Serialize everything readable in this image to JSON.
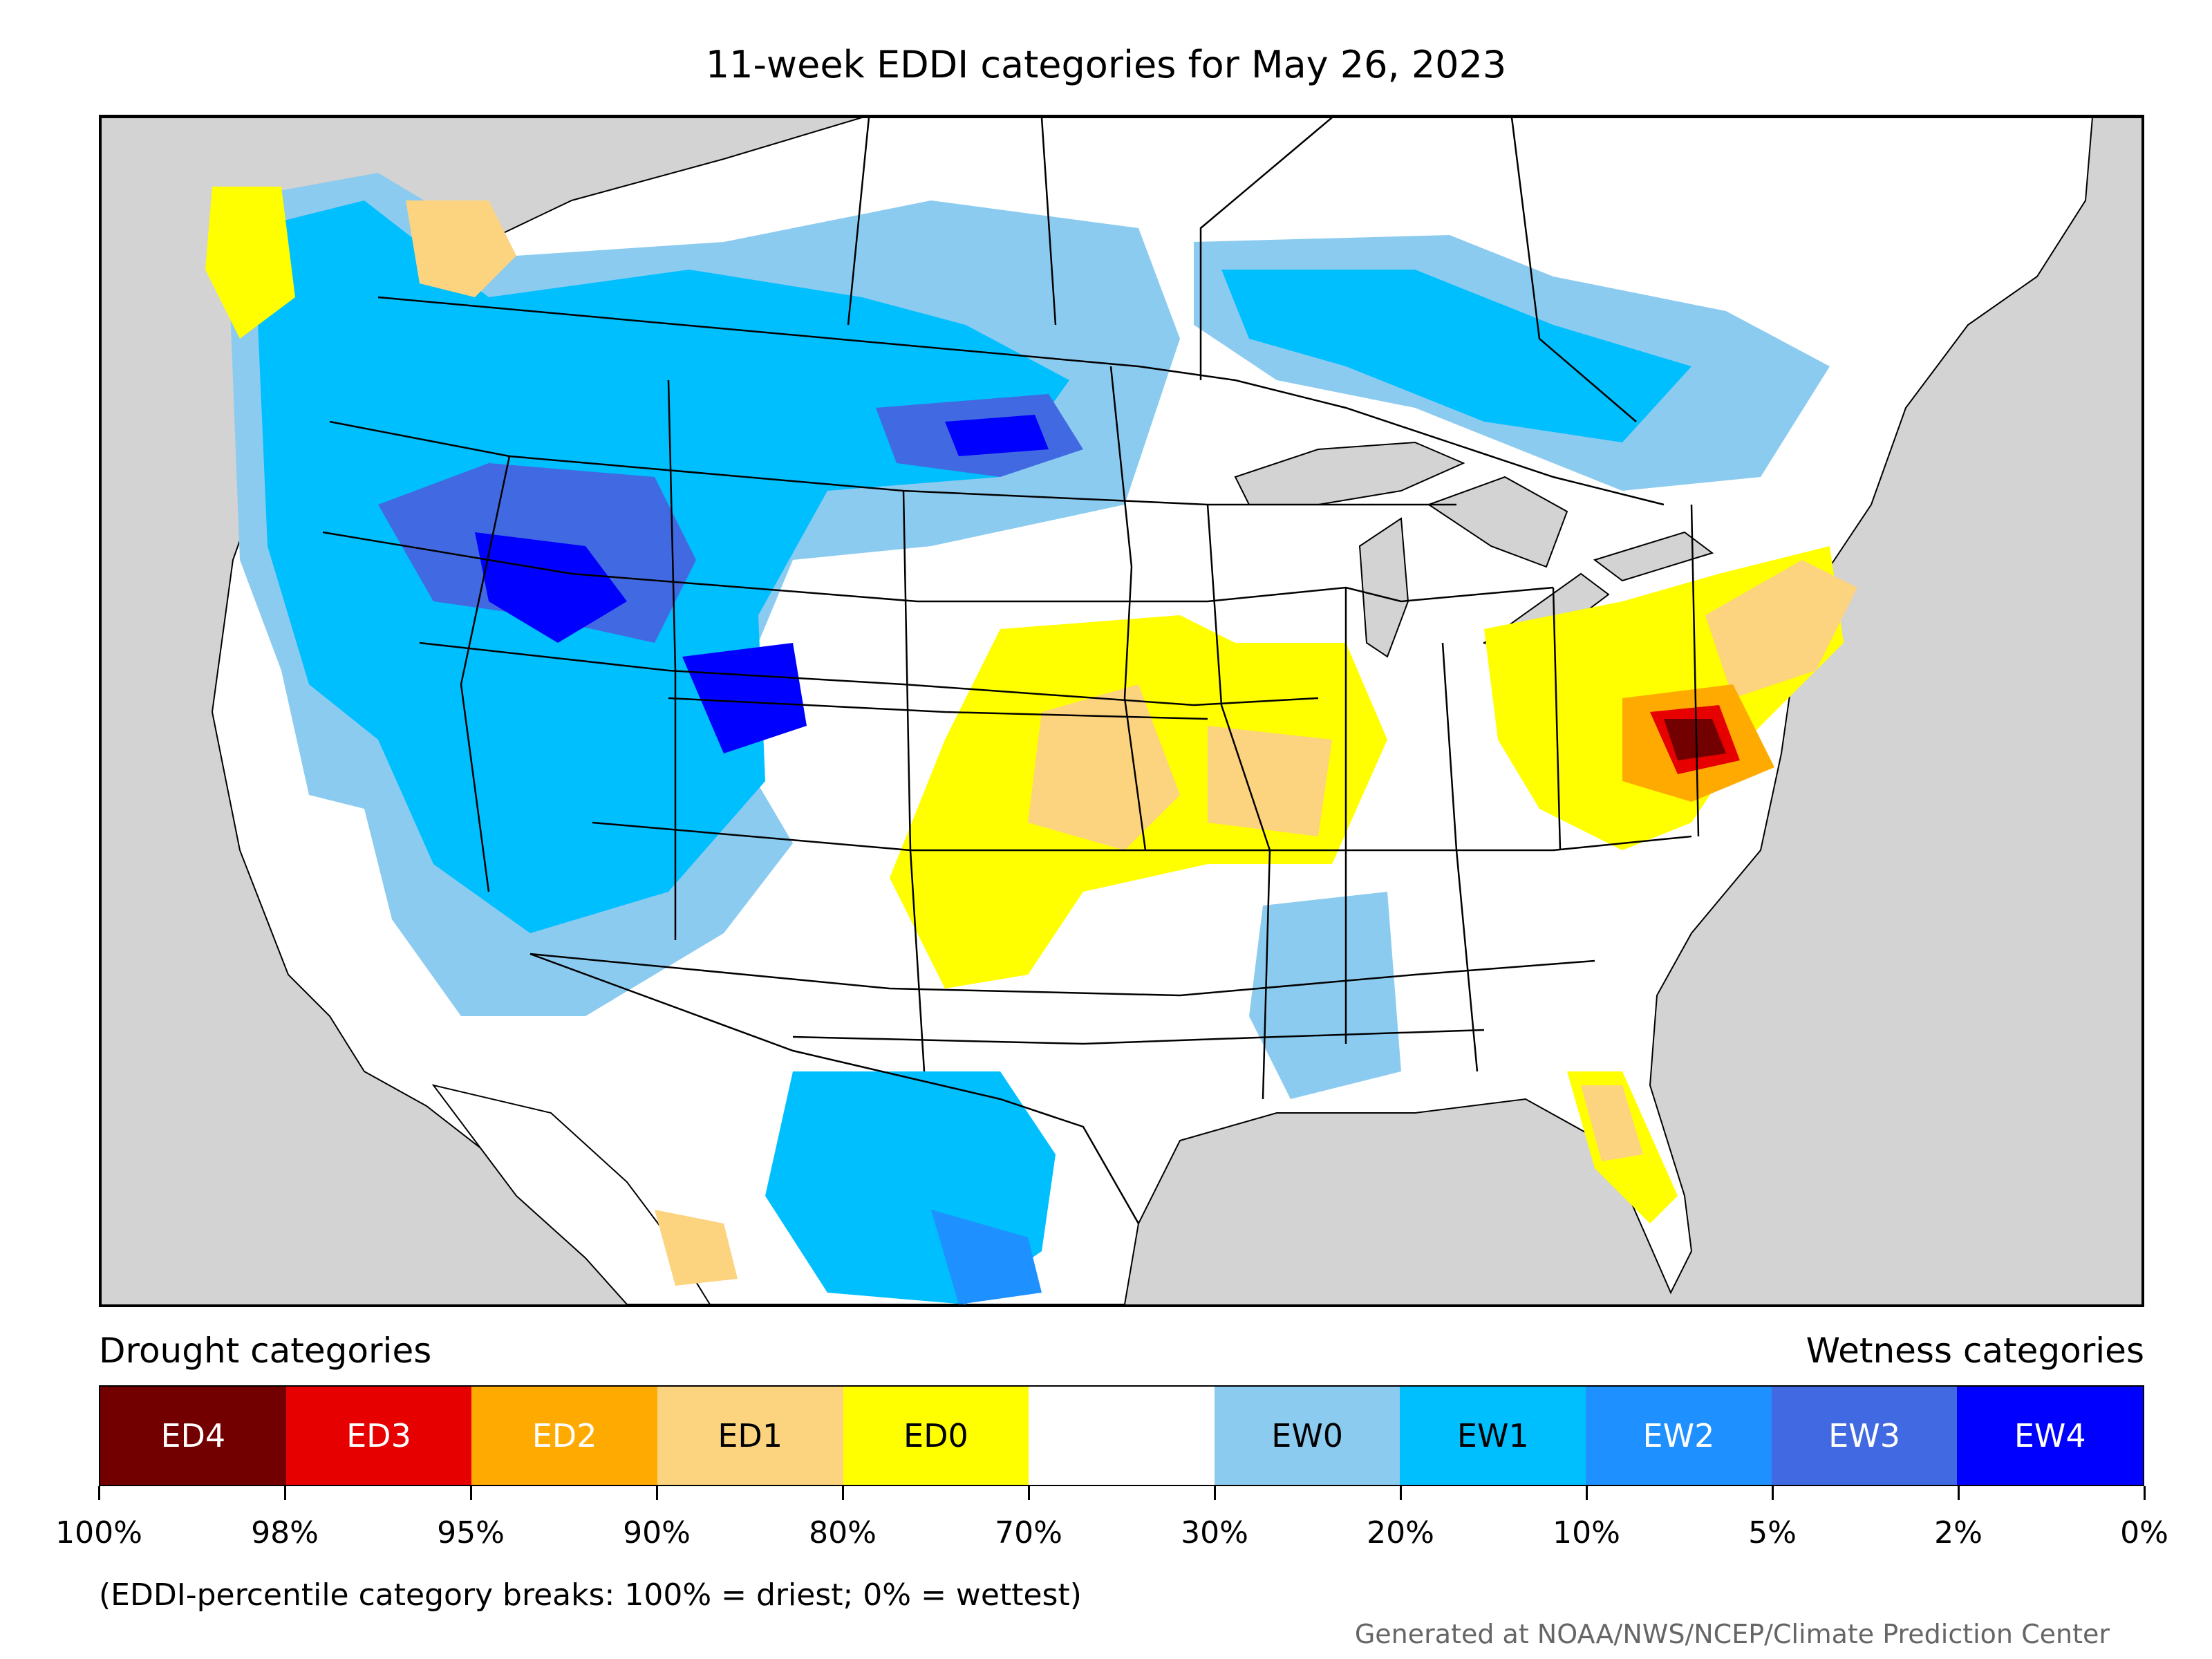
{
  "map": {
    "title": "11-week EDDI categories for May 26, 2023"
  },
  "legend": {
    "drought_heading": "Drought categories",
    "wetness_heading": "Wetness categories",
    "categories": [
      {
        "label": "ED4",
        "color": "#730000",
        "text_color": "#ffffff"
      },
      {
        "label": "ED3",
        "color": "#e60000",
        "text_color": "#ffffff"
      },
      {
        "label": "ED2",
        "color": "#ffaa00",
        "text_color": "#ffffff"
      },
      {
        "label": "ED1",
        "color": "#fcd37f",
        "text_color": "#000000"
      },
      {
        "label": "ED0",
        "color": "#ffff00",
        "text_color": "#000000"
      },
      {
        "label": "",
        "color": "#ffffff",
        "text_color": "#000000"
      },
      {
        "label": "EW0",
        "color": "#8ccbf0",
        "text_color": "#000000"
      },
      {
        "label": "EW1",
        "color": "#00bfff",
        "text_color": "#000000"
      },
      {
        "label": "EW2",
        "color": "#1e90ff",
        "text_color": "#ffffff"
      },
      {
        "label": "EW3",
        "color": "#4169e1",
        "text_color": "#ffffff"
      },
      {
        "label": "EW4",
        "color": "#0000ff",
        "text_color": "#ffffff"
      }
    ],
    "percentile_breaks": [
      "100%",
      "98%",
      "95%",
      "90%",
      "80%",
      "70%",
      "30%",
      "20%",
      "10%",
      "5%",
      "2%",
      "0%"
    ],
    "note": "(EDDI-percentile category breaks: 100% = driest; 0% = wettest)"
  },
  "credit": "Generated at NOAA/NWS/NCEP/Climate Prediction Center"
}
